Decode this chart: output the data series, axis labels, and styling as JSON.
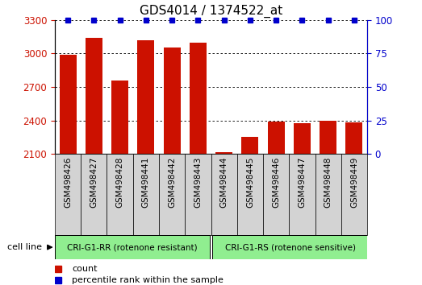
{
  "title": "GDS4014 / 1374522_at",
  "samples": [
    "GSM498426",
    "GSM498427",
    "GSM498428",
    "GSM498441",
    "GSM498442",
    "GSM498443",
    "GSM498444",
    "GSM498445",
    "GSM498446",
    "GSM498447",
    "GSM498448",
    "GSM498449"
  ],
  "counts": [
    2990,
    3140,
    2755,
    3120,
    3050,
    3100,
    2115,
    2250,
    2390,
    2375,
    2395,
    2385
  ],
  "group1_label": "CRI-G1-RR (rotenone resistant)",
  "group2_label": "CRI-G1-RS (rotenone sensitive)",
  "group1_count": 6,
  "group2_count": 6,
  "cell_line_label": "cell line",
  "bar_color": "#cc1100",
  "percentile_color": "#0000cc",
  "ylim_left": [
    2100,
    3300
  ],
  "ylim_right": [
    0,
    100
  ],
  "yticks_left": [
    2100,
    2400,
    2700,
    3000,
    3300
  ],
  "yticks_right": [
    0,
    25,
    50,
    75,
    100
  ],
  "tick_area_color": "#d3d3d3",
  "group_bg": "#90ee90",
  "legend_count_label": "count",
  "legend_percentile_label": "percentile rank within the sample",
  "title_fontsize": 11,
  "tick_fontsize": 8.5,
  "bar_width": 0.65,
  "percentile_marker_size": 5
}
